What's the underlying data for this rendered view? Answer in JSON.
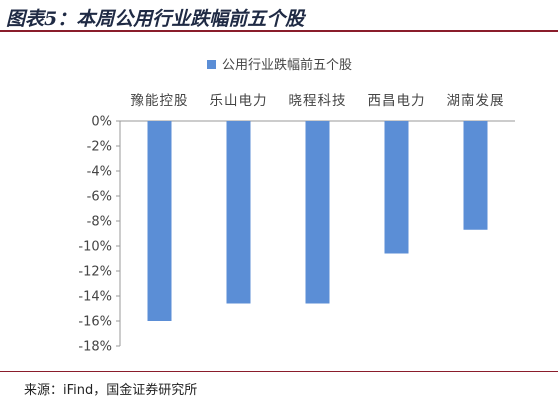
{
  "figure": {
    "title": "图表5：本周公用行业跌幅前五个股",
    "source": "来源：iFind，国金证券研究所"
  },
  "colors": {
    "bar": "#5b8ed6",
    "axis": "#999999",
    "text": "#444444"
  },
  "chart_data": {
    "type": "bar",
    "categories": [
      "豫能控股",
      "乐山电力",
      "晓程科技",
      "西昌电力",
      "湖南发展"
    ],
    "series": [
      {
        "name": "公用行业跌幅前五个股",
        "values": [
          -16.0,
          -14.6,
          -14.6,
          -10.6,
          -8.7
        ]
      }
    ],
    "yticks": [
      "0%",
      "-2%",
      "-4%",
      "-6%",
      "-8%",
      "-10%",
      "-12%",
      "-14%",
      "-16%",
      "-18%"
    ],
    "ylim": [
      -18,
      0
    ],
    "legend_position": "top",
    "category_label_position": "top",
    "grid": false
  }
}
